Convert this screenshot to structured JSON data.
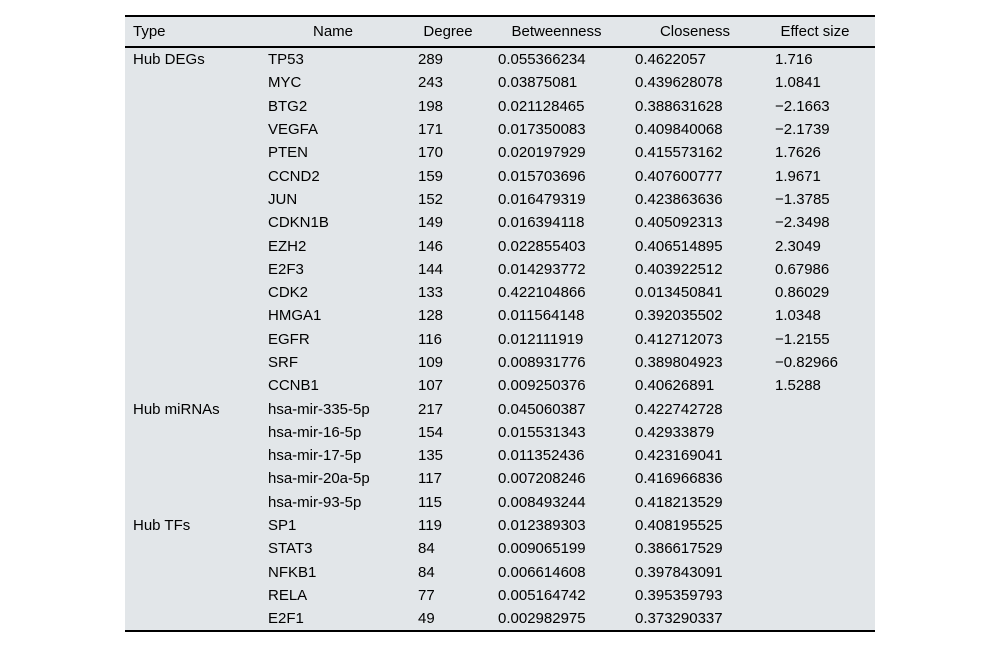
{
  "colors": {
    "table_background": "#e2e6e9",
    "rule_color": "#000000",
    "text_color": "#000000",
    "page_background": "#ffffff"
  },
  "table": {
    "columns": [
      {
        "key": "type",
        "label": "Type"
      },
      {
        "key": "name",
        "label": "Name"
      },
      {
        "key": "degree",
        "label": "Degree"
      },
      {
        "key": "betweenness",
        "label": "Betweenness"
      },
      {
        "key": "closeness",
        "label": "Closeness"
      },
      {
        "key": "effect_size",
        "label": "Effect size"
      }
    ],
    "groups": [
      {
        "type": "Hub DEGs",
        "rows": [
          {
            "name": "TP53",
            "degree": "289",
            "betweenness": "0.055366234",
            "closeness": "0.4622057",
            "effect_size": "1.716"
          },
          {
            "name": "MYC",
            "degree": "243",
            "betweenness": "0.03875081",
            "closeness": "0.439628078",
            "effect_size": "1.0841"
          },
          {
            "name": "BTG2",
            "degree": "198",
            "betweenness": "0.021128465",
            "closeness": "0.388631628",
            "effect_size": "−2.1663"
          },
          {
            "name": "VEGFA",
            "degree": "171",
            "betweenness": "0.017350083",
            "closeness": "0.409840068",
            "effect_size": "−2.1739"
          },
          {
            "name": "PTEN",
            "degree": "170",
            "betweenness": "0.020197929",
            "closeness": "0.415573162",
            "effect_size": "1.7626"
          },
          {
            "name": "CCND2",
            "degree": "159",
            "betweenness": "0.015703696",
            "closeness": "0.407600777",
            "effect_size": "1.9671"
          },
          {
            "name": "JUN",
            "degree": "152",
            "betweenness": "0.016479319",
            "closeness": "0.423863636",
            "effect_size": "−1.3785"
          },
          {
            "name": "CDKN1B",
            "degree": "149",
            "betweenness": "0.016394118",
            "closeness": "0.405092313",
            "effect_size": "−2.3498"
          },
          {
            "name": "EZH2",
            "degree": "146",
            "betweenness": "0.022855403",
            "closeness": "0.406514895",
            "effect_size": "2.3049"
          },
          {
            "name": "E2F3",
            "degree": "144",
            "betweenness": "0.014293772",
            "closeness": "0.403922512",
            "effect_size": "0.67986"
          },
          {
            "name": "CDK2",
            "degree": "133",
            "betweenness": "0.422104866",
            "closeness": "0.013450841",
            "effect_size": "0.86029"
          },
          {
            "name": "HMGA1",
            "degree": "128",
            "betweenness": "0.011564148",
            "closeness": "0.392035502",
            "effect_size": "1.0348"
          },
          {
            "name": "EGFR",
            "degree": "116",
            "betweenness": "0.012111919",
            "closeness": "0.412712073",
            "effect_size": "−1.2155"
          },
          {
            "name": "SRF",
            "degree": "109",
            "betweenness": "0.008931776",
            "closeness": "0.389804923",
            "effect_size": "−0.82966"
          },
          {
            "name": "CCNB1",
            "degree": "107",
            "betweenness": "0.009250376",
            "closeness": "0.40626891",
            "effect_size": "1.5288"
          }
        ]
      },
      {
        "type": "Hub miRNAs",
        "rows": [
          {
            "name": "hsa-mir-335-5p",
            "degree": "217",
            "betweenness": "0.045060387",
            "closeness": "0.422742728",
            "effect_size": ""
          },
          {
            "name": "hsa-mir-16-5p",
            "degree": "154",
            "betweenness": "0.015531343",
            "closeness": "0.42933879",
            "effect_size": ""
          },
          {
            "name": "hsa-mir-17-5p",
            "degree": "135",
            "betweenness": "0.011352436",
            "closeness": "0.423169041",
            "effect_size": ""
          },
          {
            "name": "hsa-mir-20a-5p",
            "degree": "117",
            "betweenness": "0.007208246",
            "closeness": "0.416966836",
            "effect_size": ""
          },
          {
            "name": "hsa-mir-93-5p",
            "degree": "115",
            "betweenness": "0.008493244",
            "closeness": "0.418213529",
            "effect_size": ""
          }
        ]
      },
      {
        "type": "Hub TFs",
        "rows": [
          {
            "name": "SP1",
            "degree": "119",
            "betweenness": "0.012389303",
            "closeness": "0.408195525",
            "effect_size": ""
          },
          {
            "name": "STAT3",
            "degree": "84",
            "betweenness": "0.009065199",
            "closeness": "0.386617529",
            "effect_size": ""
          },
          {
            "name": "NFKB1",
            "degree": "84",
            "betweenness": "0.006614608",
            "closeness": "0.397843091",
            "effect_size": ""
          },
          {
            "name": "RELA",
            "degree": "77",
            "betweenness": "0.005164742",
            "closeness": "0.395359793",
            "effect_size": ""
          },
          {
            "name": "E2F1",
            "degree": "49",
            "betweenness": "0.002982975",
            "closeness": "0.373290337",
            "effect_size": ""
          }
        ]
      }
    ]
  }
}
